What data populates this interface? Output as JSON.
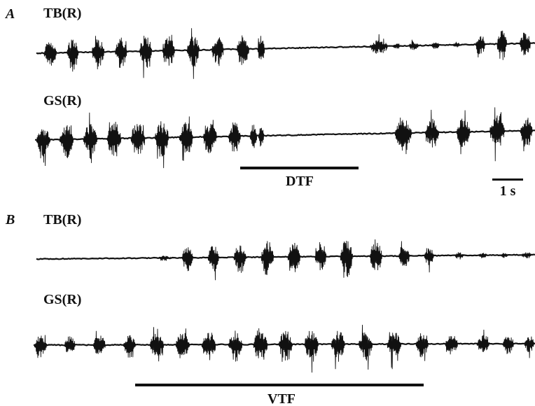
{
  "figure": {
    "panels": [
      {
        "label": "A",
        "traces": [
          {
            "label": "TB(R)"
          },
          {
            "label": "GS(R)"
          }
        ],
        "stimulus": {
          "label": "DTF"
        },
        "scale_bar": {
          "label": "1 s"
        }
      },
      {
        "label": "B",
        "traces": [
          {
            "label": "TB(R)"
          },
          {
            "label": "GS(R)"
          }
        ],
        "stimulus": {
          "label": "VTF"
        }
      }
    ],
    "colors": {
      "ink": "#111111",
      "background": "#ffffff"
    }
  }
}
